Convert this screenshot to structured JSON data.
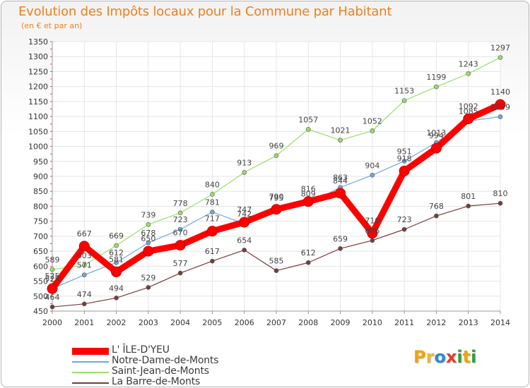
{
  "header": {
    "title": "Evolution des Impôts locaux pour la Commune par Habitant",
    "subtitle": "(en € et par an)"
  },
  "logo": {
    "letters": [
      "P",
      "r",
      "o",
      "x",
      "i",
      "t",
      "i"
    ],
    "colors": [
      "#f0a20c",
      "#e9b92d",
      "#2d8bd0",
      "#e23b2e",
      "#2f9d3a",
      "#f0a20c",
      "#2f9d3a"
    ]
  },
  "chart_data": {
    "type": "line",
    "title": "Evolution des Impôts locaux pour la Commune par Habitant",
    "subtitle": "(en € et par an)",
    "xlabel": "",
    "ylabel": "",
    "x": [
      "2000",
      "2001",
      "2002",
      "2003",
      "2004",
      "2005",
      "2006",
      "2007",
      "2008",
      "2009",
      "2010",
      "2011",
      "2012",
      "2013",
      "2014"
    ],
    "ylim": [
      450,
      1350
    ],
    "yticks": [
      450,
      500,
      550,
      600,
      650,
      700,
      750,
      800,
      850,
      900,
      950,
      1000,
      1050,
      1100,
      1150,
      1200,
      1250,
      1300,
      1350
    ],
    "grid": true,
    "legend_position": "bottom-left",
    "series": [
      {
        "name": "L' ÎLE-D'YEU",
        "color": "#ff0000",
        "values": [
          525,
          667,
          581,
          650,
          670,
          717,
          747,
          790,
          816,
          844,
          710,
          918,
          994,
          1092,
          1140
        ],
        "labels": [
          "525",
          "667",
          "581",
          "650",
          "670",
          "717",
          "747",
          "790",
          "816",
          "844",
          "710",
          "918",
          "994",
          "1092",
          "1140"
        ]
      },
      {
        "name": "Notre-Dame-de-Monts",
        "color": "#6fa8dc",
        "values": [
          525,
          571,
          612,
          678,
          723,
          781,
          742,
          795,
          809,
          863,
          904,
          951,
          1013,
          1085,
          1099
        ],
        "labels": [
          "525",
          "571",
          "612",
          "678",
          "723",
          "781",
          "742",
          "795",
          "809",
          "863",
          "904",
          "951",
          "1013",
          "1085",
          "1099"
        ]
      },
      {
        "name": "Saint-Jean-de-Monts",
        "color": "#99dd66",
        "values": [
          589,
          603,
          669,
          739,
          778,
          840,
          913,
          969,
          1057,
          1021,
          1052,
          1153,
          1199,
          1243,
          1297
        ],
        "labels": [
          "589",
          "603",
          "669",
          "739",
          "778",
          "840",
          "913",
          "969",
          "1057",
          "1021",
          "1052",
          "1153",
          "1199",
          "1243",
          "1297"
        ]
      },
      {
        "name": "La Barre-de-Monts",
        "color": "#7a3b3b",
        "values": [
          464,
          474,
          494,
          529,
          577,
          617,
          654,
          585,
          612,
          659,
          686,
          723,
          768,
          801,
          810
        ],
        "labels": [
          "464",
          "474",
          "494",
          "529",
          "577",
          "617",
          "654",
          "585",
          "612",
          "659",
          "686",
          "723",
          "768",
          "801",
          "810"
        ]
      }
    ]
  }
}
